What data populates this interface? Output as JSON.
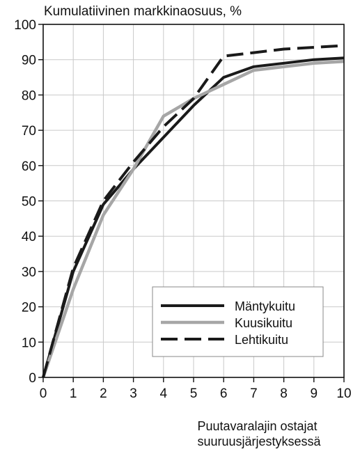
{
  "chart_data": {
    "type": "line",
    "ylabel": "Kumulatiivinen markkinaosuus, %",
    "xlabel_lines": [
      "Puutavaralajin ostajat",
      "suuruusjärjestyksessä"
    ],
    "xlim": [
      0,
      10
    ],
    "ylim": [
      0,
      100
    ],
    "x_ticks": [
      "0",
      "1",
      "2",
      "3",
      "4",
      "5",
      "6",
      "7",
      "8",
      "9",
      "10"
    ],
    "y_ticks": [
      "0",
      "10",
      "20",
      "30",
      "40",
      "50",
      "60",
      "70",
      "80",
      "90",
      "100"
    ],
    "grid": true,
    "legend_position": "bottom-right",
    "x": [
      0,
      1,
      2,
      3,
      4,
      5,
      6,
      7,
      8,
      9,
      10
    ],
    "series": [
      {
        "name": "Mäntykuitu",
        "values": [
          0,
          30,
          49,
          59,
          68,
          77,
          85,
          88,
          89,
          90,
          90.5
        ],
        "color": "#1a1a1a",
        "style": "solid"
      },
      {
        "name": "Kuusikuitu",
        "values": [
          0,
          25,
          46,
          59,
          74,
          79,
          83,
          87,
          88,
          89,
          89.5
        ],
        "color": "#a6a6a6",
        "style": "solid"
      },
      {
        "name": "Lehtikuitu",
        "values": [
          0,
          31,
          50,
          61,
          71,
          79,
          91,
          92,
          93,
          93.5,
          94
        ],
        "color": "#1a1a1a",
        "style": "dashed"
      }
    ]
  }
}
